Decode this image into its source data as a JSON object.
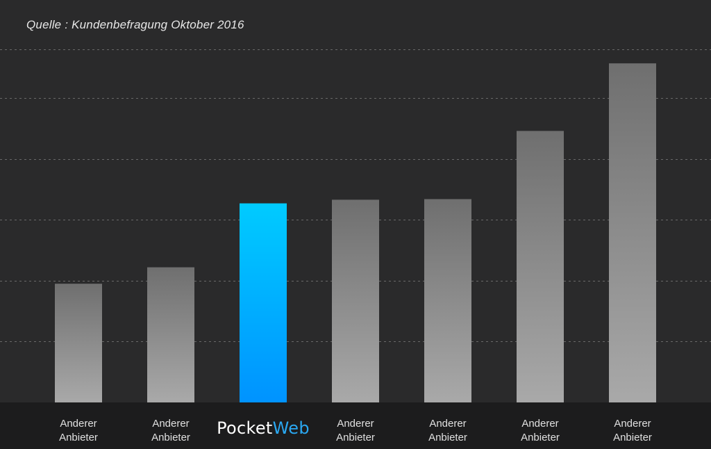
{
  "source_note": "Quelle : Kundenbefragung Oktober 2016",
  "colors": {
    "background": "#2a2a2b",
    "bottom_band": "#1c1c1d",
    "gridline": "#6a6a6a",
    "bar_gray_top": "#6f6f6f",
    "bar_gray_bottom": "#a9a9a9",
    "bar_highlight_top": "#00cbff",
    "bar_highlight_bottom": "#0093ff",
    "brand_second": "#2aa8f2"
  },
  "chart_data": {
    "type": "bar",
    "title": "",
    "xlabel": "",
    "ylabel": "",
    "grid": true,
    "ylim": [
      0,
      5.8
    ],
    "gridlines": [
      1,
      2,
      3,
      4,
      5,
      5.8
    ],
    "categories": [
      [
        "Anderer",
        "Anbieter"
      ],
      [
        "Anderer",
        "Anbieter"
      ],
      [
        "PocketWeb"
      ],
      [
        "Anderer",
        "Anbieter"
      ],
      [
        "Anderer",
        "Anbieter"
      ],
      [
        "Anderer",
        "Anbieter"
      ],
      [
        "Anderer",
        "Anbieter"
      ]
    ],
    "brand": {
      "part1": "Pocket",
      "part2": "Web"
    },
    "highlight_index": 2,
    "values": [
      1.95,
      2.22,
      3.27,
      3.33,
      3.34,
      4.46,
      5.57
    ]
  }
}
